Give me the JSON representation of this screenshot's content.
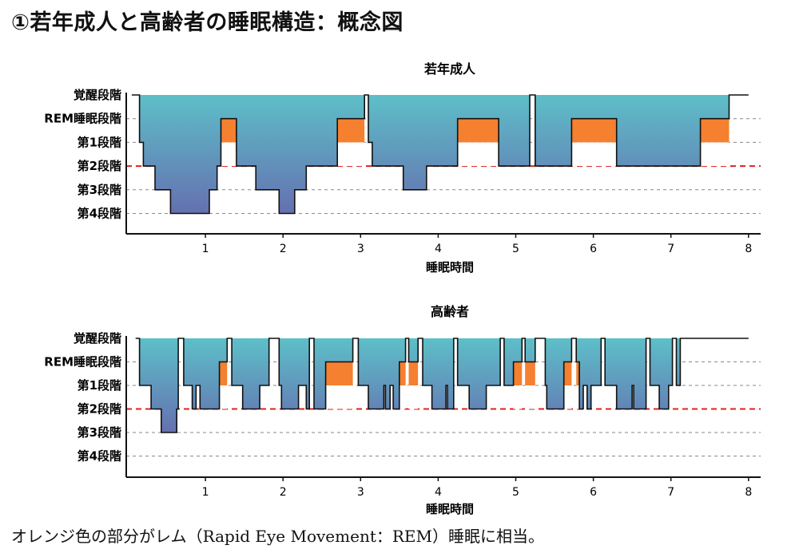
{
  "page": {
    "title": "①若年成人と高齢者の睡眠構造：概念図",
    "caption": "オレンジ色の部分がレム（Rapid Eye Movement：REM）睡眠に相当。"
  },
  "colors": {
    "gradient_top": "#5dbfc8",
    "gradient_bottom": "#6570b0",
    "rem": "#f5802f",
    "stage2_line": "#e02020",
    "grid": "#888888",
    "axis": "#111111"
  },
  "chart_data": [
    {
      "type": "area",
      "title": "若年成人",
      "xlabel": "睡眠時間",
      "xticks": [
        1,
        2,
        3,
        4,
        5,
        6,
        7,
        8
      ],
      "xlim": [
        0,
        8.2
      ],
      "stage_labels": [
        "覚醒段階",
        "REM睡眠段階",
        "第1段階",
        "第2段階",
        "第3段階",
        "第4段階"
      ],
      "stage2_dashed_red": true,
      "hypnogram": [
        [
          0.05,
          0
        ],
        [
          0.15,
          0
        ],
        [
          0.15,
          2
        ],
        [
          0.2,
          2
        ],
        [
          0.2,
          3
        ],
        [
          0.35,
          3
        ],
        [
          0.35,
          4
        ],
        [
          0.55,
          4
        ],
        [
          0.55,
          5
        ],
        [
          1.05,
          5
        ],
        [
          1.05,
          4
        ],
        [
          1.15,
          4
        ],
        [
          1.15,
          3
        ],
        [
          1.2,
          3
        ],
        [
          1.2,
          1
        ],
        [
          1.4,
          1
        ],
        [
          1.4,
          3
        ],
        [
          1.65,
          3
        ],
        [
          1.65,
          4
        ],
        [
          1.95,
          4
        ],
        [
          1.95,
          5
        ],
        [
          2.15,
          5
        ],
        [
          2.15,
          4
        ],
        [
          2.3,
          4
        ],
        [
          2.3,
          3
        ],
        [
          2.7,
          3
        ],
        [
          2.7,
          1
        ],
        [
          3.05,
          1
        ],
        [
          3.05,
          0
        ],
        [
          3.1,
          0
        ],
        [
          3.1,
          2
        ],
        [
          3.15,
          2
        ],
        [
          3.15,
          3
        ],
        [
          3.55,
          3
        ],
        [
          3.55,
          4
        ],
        [
          3.85,
          4
        ],
        [
          3.85,
          3
        ],
        [
          4.25,
          3
        ],
        [
          4.25,
          1
        ],
        [
          4.78,
          1
        ],
        [
          4.78,
          3
        ],
        [
          5.18,
          3
        ],
        [
          5.18,
          0
        ],
        [
          5.25,
          0
        ],
        [
          5.25,
          3
        ],
        [
          5.72,
          3
        ],
        [
          5.72,
          1
        ],
        [
          6.3,
          1
        ],
        [
          6.3,
          3
        ],
        [
          7.38,
          3
        ],
        [
          7.38,
          1
        ],
        [
          7.75,
          1
        ],
        [
          7.75,
          0
        ],
        [
          8.0,
          0
        ]
      ],
      "rem_segments": [
        [
          1.2,
          1.4
        ],
        [
          2.7,
          3.05
        ],
        [
          4.25,
          4.78
        ],
        [
          5.72,
          6.3
        ],
        [
          7.38,
          7.75
        ]
      ]
    },
    {
      "type": "area",
      "title": "高齢者",
      "xlabel": "睡眠時間",
      "xticks": [
        1,
        2,
        3,
        4,
        5,
        6,
        7,
        8
      ],
      "xlim": [
        0,
        8.2
      ],
      "stage_labels": [
        "覚醒段階",
        "REM睡眠段階",
        "第1段階",
        "第2段階",
        "第3段階",
        "第4段階"
      ],
      "stage2_dashed_red": true,
      "hypnogram": [
        [
          0.1,
          0
        ],
        [
          0.15,
          0
        ],
        [
          0.15,
          2
        ],
        [
          0.3,
          2
        ],
        [
          0.3,
          3
        ],
        [
          0.43,
          3
        ],
        [
          0.43,
          4
        ],
        [
          0.63,
          4
        ],
        [
          0.63,
          3
        ],
        [
          0.65,
          3
        ],
        [
          0.65,
          0
        ],
        [
          0.72,
          0
        ],
        [
          0.72,
          2
        ],
        [
          0.83,
          2
        ],
        [
          0.83,
          3
        ],
        [
          0.88,
          3
        ],
        [
          0.88,
          2
        ],
        [
          0.93,
          2
        ],
        [
          0.93,
          3
        ],
        [
          1.18,
          3
        ],
        [
          1.18,
          1
        ],
        [
          1.28,
          1
        ],
        [
          1.28,
          0
        ],
        [
          1.34,
          0
        ],
        [
          1.34,
          2
        ],
        [
          1.48,
          2
        ],
        [
          1.48,
          3
        ],
        [
          1.7,
          3
        ],
        [
          1.7,
          2
        ],
        [
          1.82,
          2
        ],
        [
          1.82,
          0
        ],
        [
          1.95,
          0
        ],
        [
          1.95,
          2
        ],
        [
          1.98,
          2
        ],
        [
          1.98,
          3
        ],
        [
          2.2,
          3
        ],
        [
          2.2,
          2
        ],
        [
          2.3,
          2
        ],
        [
          2.3,
          3
        ],
        [
          2.34,
          3
        ],
        [
          2.34,
          0
        ],
        [
          2.4,
          0
        ],
        [
          2.4,
          3
        ],
        [
          2.55,
          3
        ],
        [
          2.55,
          1
        ],
        [
          2.9,
          1
        ],
        [
          2.9,
          0
        ],
        [
          2.97,
          0
        ],
        [
          2.97,
          2
        ],
        [
          3.1,
          2
        ],
        [
          3.1,
          3
        ],
        [
          3.3,
          3
        ],
        [
          3.3,
          2
        ],
        [
          3.32,
          2
        ],
        [
          3.32,
          3
        ],
        [
          3.38,
          3
        ],
        [
          3.38,
          2
        ],
        [
          3.42,
          2
        ],
        [
          3.42,
          3
        ],
        [
          3.5,
          3
        ],
        [
          3.5,
          1
        ],
        [
          3.58,
          1
        ],
        [
          3.58,
          0
        ],
        [
          3.62,
          0
        ],
        [
          3.62,
          1
        ],
        [
          3.74,
          1
        ],
        [
          3.74,
          0
        ],
        [
          3.8,
          0
        ],
        [
          3.8,
          2
        ],
        [
          3.92,
          2
        ],
        [
          3.92,
          3
        ],
        [
          4.1,
          3
        ],
        [
          4.1,
          2
        ],
        [
          4.12,
          2
        ],
        [
          4.12,
          3
        ],
        [
          4.2,
          3
        ],
        [
          4.2,
          0
        ],
        [
          4.25,
          0
        ],
        [
          4.25,
          2
        ],
        [
          4.4,
          2
        ],
        [
          4.4,
          3
        ],
        [
          4.62,
          3
        ],
        [
          4.62,
          2
        ],
        [
          4.8,
          2
        ],
        [
          4.8,
          0
        ],
        [
          4.85,
          0
        ],
        [
          4.85,
          2
        ],
        [
          4.97,
          2
        ],
        [
          4.97,
          1
        ],
        [
          5.08,
          1
        ],
        [
          5.08,
          0
        ],
        [
          5.12,
          0
        ],
        [
          5.12,
          1
        ],
        [
          5.25,
          1
        ],
        [
          5.25,
          0
        ],
        [
          5.38,
          0
        ],
        [
          5.38,
          2
        ],
        [
          5.4,
          2
        ],
        [
          5.4,
          3
        ],
        [
          5.62,
          3
        ],
        [
          5.62,
          1
        ],
        [
          5.72,
          1
        ],
        [
          5.72,
          0
        ],
        [
          5.78,
          0
        ],
        [
          5.78,
          1
        ],
        [
          5.82,
          1
        ],
        [
          5.82,
          3
        ],
        [
          5.87,
          3
        ],
        [
          5.87,
          2
        ],
        [
          5.92,
          2
        ],
        [
          5.92,
          3
        ],
        [
          5.97,
          3
        ],
        [
          5.97,
          2
        ],
        [
          6.1,
          2
        ],
        [
          6.1,
          0
        ],
        [
          6.15,
          0
        ],
        [
          6.15,
          2
        ],
        [
          6.3,
          2
        ],
        [
          6.3,
          3
        ],
        [
          6.5,
          3
        ],
        [
          6.5,
          2
        ],
        [
          6.52,
          2
        ],
        [
          6.52,
          3
        ],
        [
          6.68,
          3
        ],
        [
          6.68,
          0
        ],
        [
          6.73,
          0
        ],
        [
          6.73,
          2
        ],
        [
          6.85,
          2
        ],
        [
          6.85,
          3
        ],
        [
          6.97,
          3
        ],
        [
          6.97,
          2
        ],
        [
          7.02,
          2
        ],
        [
          7.02,
          0
        ],
        [
          7.07,
          0
        ],
        [
          7.07,
          2
        ],
        [
          7.12,
          2
        ],
        [
          7.12,
          0
        ],
        [
          8.0,
          0
        ]
      ],
      "rem_segments": [
        [
          1.18,
          1.28
        ],
        [
          2.55,
          2.9
        ],
        [
          3.5,
          3.58
        ],
        [
          3.62,
          3.74
        ],
        [
          4.97,
          5.08
        ],
        [
          5.12,
          5.25
        ],
        [
          5.62,
          5.72
        ],
        [
          5.78,
          5.82
        ]
      ]
    }
  ]
}
